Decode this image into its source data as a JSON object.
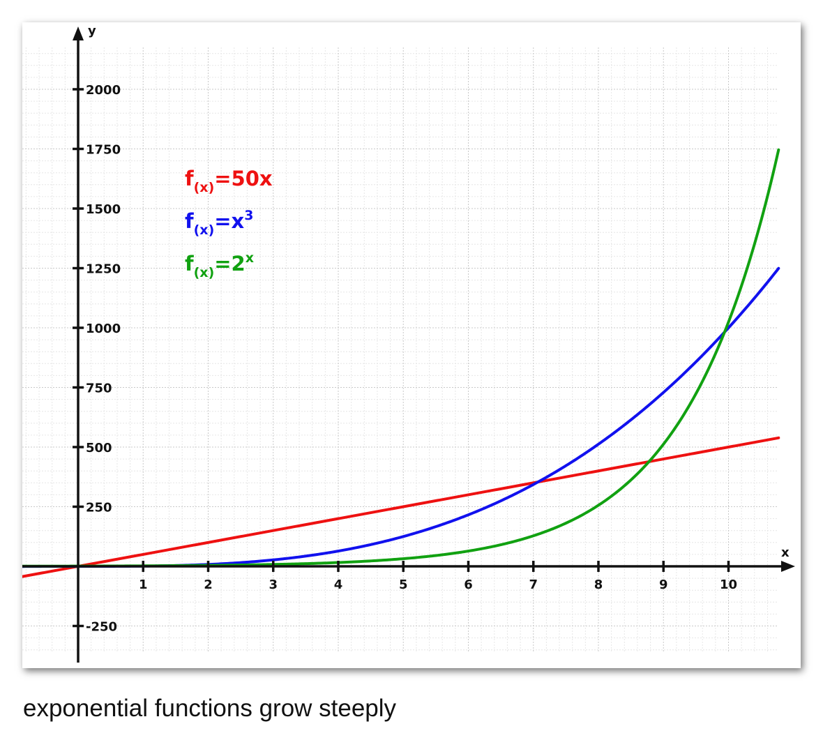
{
  "caption": "exponential functions grow steeply",
  "chart_data": {
    "type": "line",
    "title": "",
    "xlabel": "x",
    "ylabel": "y",
    "xlim": [
      -0.87,
      11.0
    ],
    "ylim": [
      -400,
      2270
    ],
    "x_ticks": [
      1,
      2,
      3,
      4,
      5,
      6,
      7,
      8,
      9,
      10
    ],
    "y_ticks": [
      -250,
      250,
      500,
      750,
      1000,
      1250,
      1500,
      1750,
      2000
    ],
    "x_tick_labels": [
      "1",
      "2",
      "3",
      "4",
      "5",
      "6",
      "7",
      "8",
      "9",
      "10"
    ],
    "y_tick_labels": [
      "-250",
      "250",
      "500",
      "750",
      "1000",
      "1250",
      "1500",
      "1750",
      "2000"
    ],
    "grid": true,
    "legend_position": "top-left",
    "series": [
      {
        "name": "f(x)=50x",
        "label_main": "f",
        "label_sub": "(x)",
        "label_rest": "=50x",
        "label_sup": "",
        "formula": "linear",
        "color": "#ee1111",
        "x": [
          -0.87,
          0,
          2,
          4,
          6,
          8,
          10,
          10.77
        ],
        "y": [
          -43.5,
          0,
          100,
          200,
          300,
          400,
          500,
          538.5
        ]
      },
      {
        "name": "f(x)=x³",
        "label_main": "f",
        "label_sub": "(x)",
        "label_rest": "=x",
        "label_sup": "3",
        "formula": "cubic",
        "color": "#1111ee",
        "x": [
          -0.87,
          0,
          2,
          4,
          6,
          7,
          8,
          9,
          10,
          10.77
        ],
        "y": [
          -0.66,
          0,
          8,
          64,
          216,
          343,
          512,
          729,
          1000,
          1249.2
        ]
      },
      {
        "name": "f(x)=2ˣ",
        "label_main": "f",
        "label_sub": "(x)",
        "label_rest": "=2",
        "label_sup": "x",
        "formula": "exponential",
        "color": "#11a111",
        "x": [
          -0.87,
          0,
          2,
          4,
          6,
          7,
          8,
          9,
          10,
          10.77
        ],
        "y": [
          0.55,
          1,
          4,
          16,
          64,
          128,
          256,
          512,
          1024,
          1746.2
        ]
      }
    ]
  }
}
